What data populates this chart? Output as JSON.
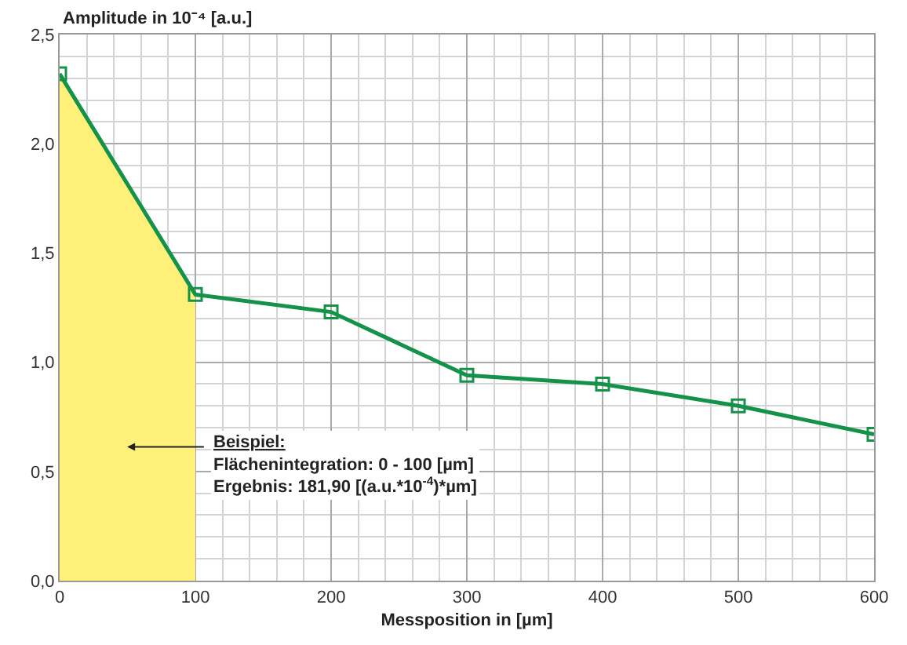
{
  "chart_data": {
    "type": "line",
    "ylabel": "Amplitude in 10⁻⁴ [a.u.]",
    "xlabel": "Messposition in [µm]",
    "series": [
      {
        "type": "area",
        "color": "#fff07a",
        "x": [
          0,
          100
        ],
        "values": [
          2.32,
          1.31
        ],
        "marker": "none"
      },
      {
        "color": "#15924a",
        "x": [
          0,
          100,
          200,
          300,
          400,
          500,
          600
        ],
        "values": [
          2.32,
          1.31,
          1.23,
          0.94,
          0.9,
          0.8,
          0.67
        ],
        "marker": "square"
      }
    ],
    "xlim": [
      0,
      600
    ],
    "xticks": [
      0,
      100,
      200,
      300,
      400,
      500,
      600
    ],
    "ylim": [
      0,
      2.5
    ],
    "yticks": [
      {
        "value": 0,
        "label": "0,0"
      },
      {
        "value": 0.5,
        "label": "0,5"
      },
      {
        "value": 1,
        "label": "1,0"
      },
      {
        "value": 1.5,
        "label": "1,5"
      },
      {
        "value": 2,
        "label": "2,0"
      },
      {
        "value": 2.5,
        "label": "2,5"
      }
    ],
    "grid": true,
    "line_style": "solid",
    "annotations": [
      "Beispiel:\nFlächenintegration: 0 - 100 [µm]\nErgebnis: 181,90 [(a.u.*10$^{-4}$)*µm]"
    ]
  }
}
